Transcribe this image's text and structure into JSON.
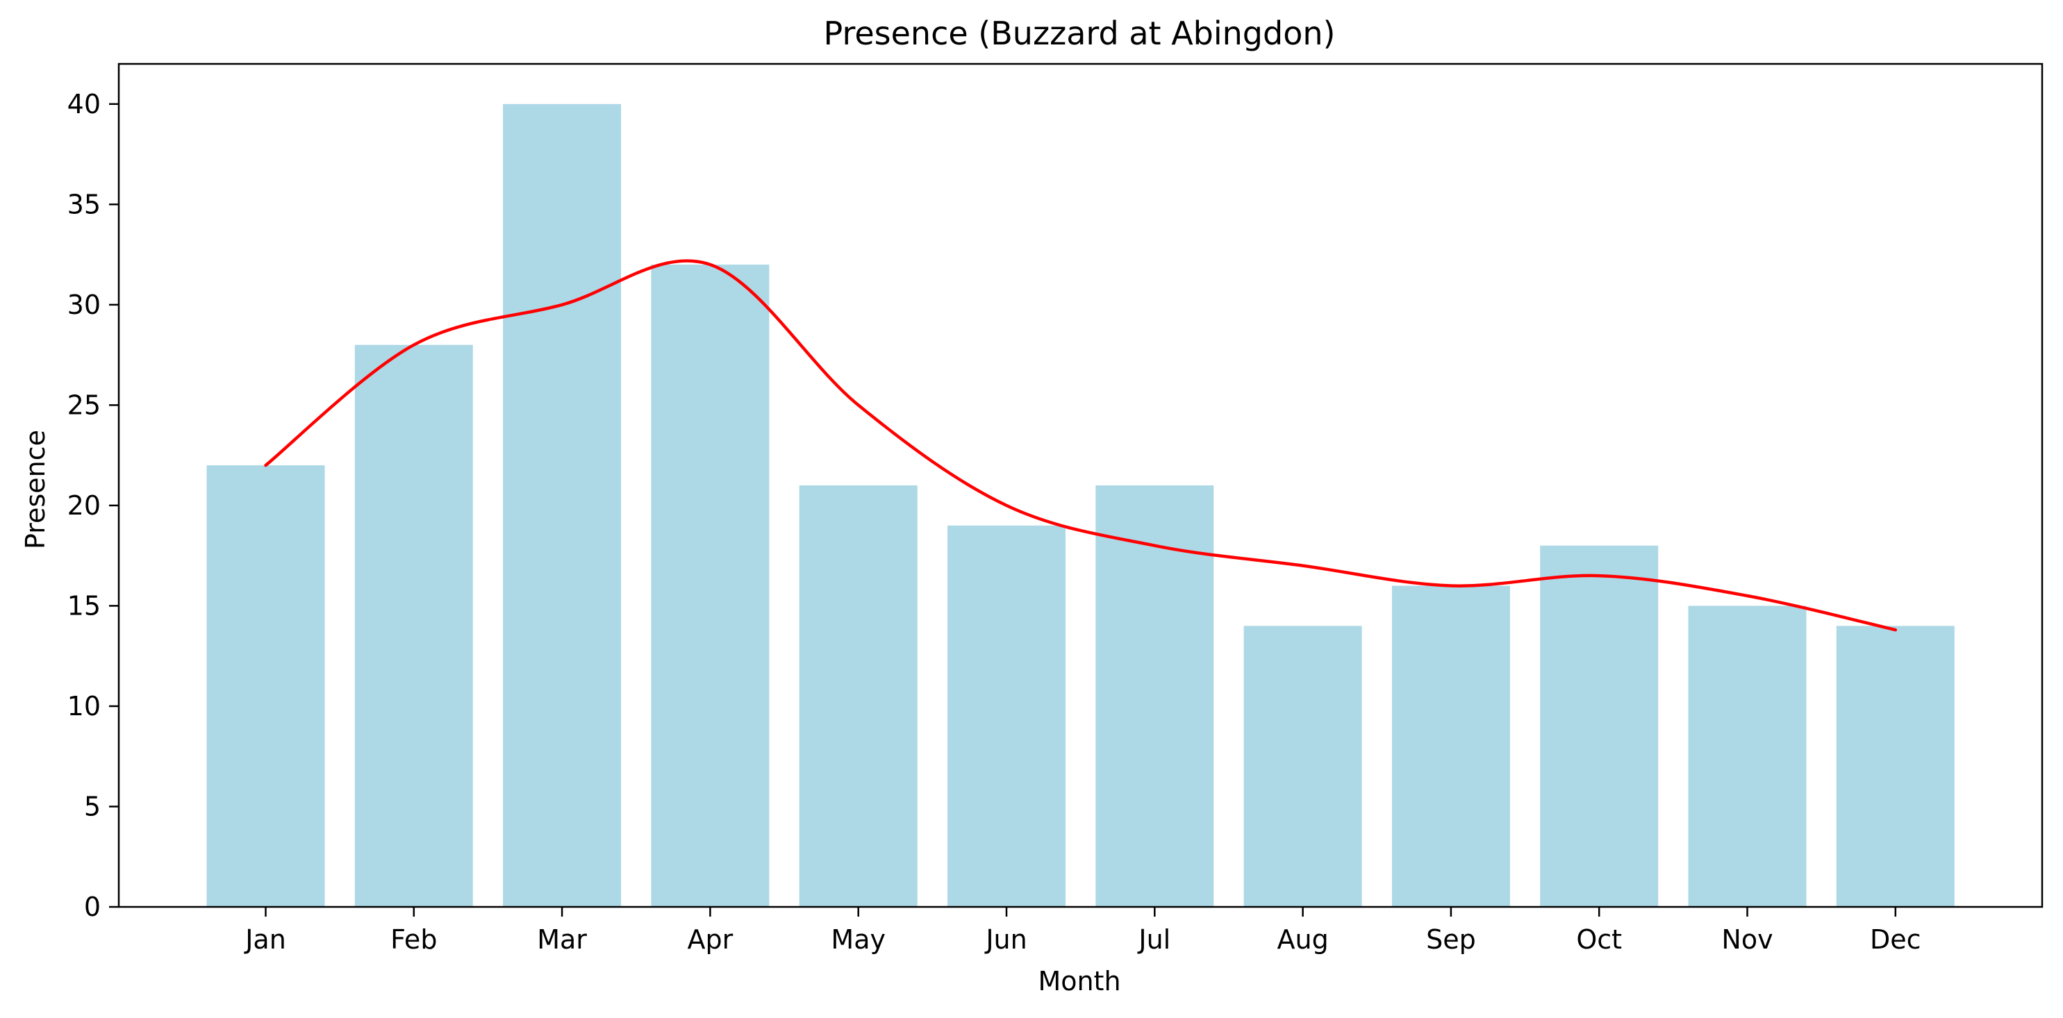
{
  "chart_data": {
    "type": "bar",
    "title": "Presence (Buzzard at Abingdon)",
    "xlabel": "Month",
    "ylabel": "Presence",
    "categories": [
      "Jan",
      "Feb",
      "Mar",
      "Apr",
      "May",
      "Jun",
      "Jul",
      "Aug",
      "Sep",
      "Oct",
      "Nov",
      "Dec"
    ],
    "values": [
      22,
      28,
      40,
      32,
      21,
      19,
      21,
      14,
      16,
      18,
      15,
      14
    ],
    "trend_line": {
      "type": "line",
      "values": [
        22,
        28,
        30,
        32,
        25,
        20,
        18,
        17,
        16,
        16.5,
        15.5,
        13.8
      ]
    },
    "ylim": [
      0,
      42
    ],
    "yticks": [
      0,
      5,
      10,
      15,
      20,
      25,
      30,
      35,
      40
    ],
    "grid": false,
    "colors": {
      "bar": "#add8e6",
      "line": "#ff0000",
      "axes": "#000000"
    }
  }
}
